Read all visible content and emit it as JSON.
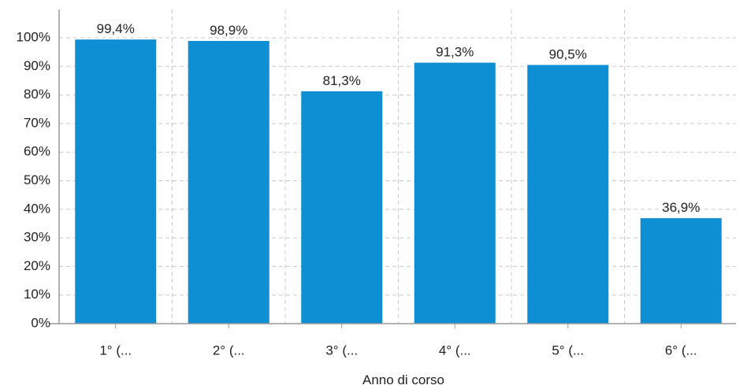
{
  "chart_data": {
    "type": "bar",
    "xlabel": "Anno di corso",
    "ylabel": "",
    "title": "",
    "categories": [
      "1° (...",
      "2° (...",
      "3° (...",
      "4° (...",
      "5° (...",
      "6° (..."
    ],
    "values": [
      99.4,
      98.9,
      81.3,
      91.3,
      90.5,
      36.9
    ],
    "value_labels": [
      "99,4%",
      "98,9%",
      "81,3%",
      "91,3%",
      "90,5%",
      "36,9%"
    ],
    "ylim": [
      0,
      100
    ],
    "yticks": [
      0,
      10,
      20,
      30,
      40,
      50,
      60,
      70,
      80,
      90,
      100
    ],
    "ytick_labels": [
      "0%",
      "10%",
      "20%",
      "30%",
      "40%",
      "50%",
      "60%",
      "70%",
      "80%",
      "90%",
      "100%"
    ],
    "grid": true,
    "legend": "none",
    "colors": {
      "bar": "#0f8fd3",
      "grid": "#c8c8c8",
      "axis": "#999999"
    }
  }
}
